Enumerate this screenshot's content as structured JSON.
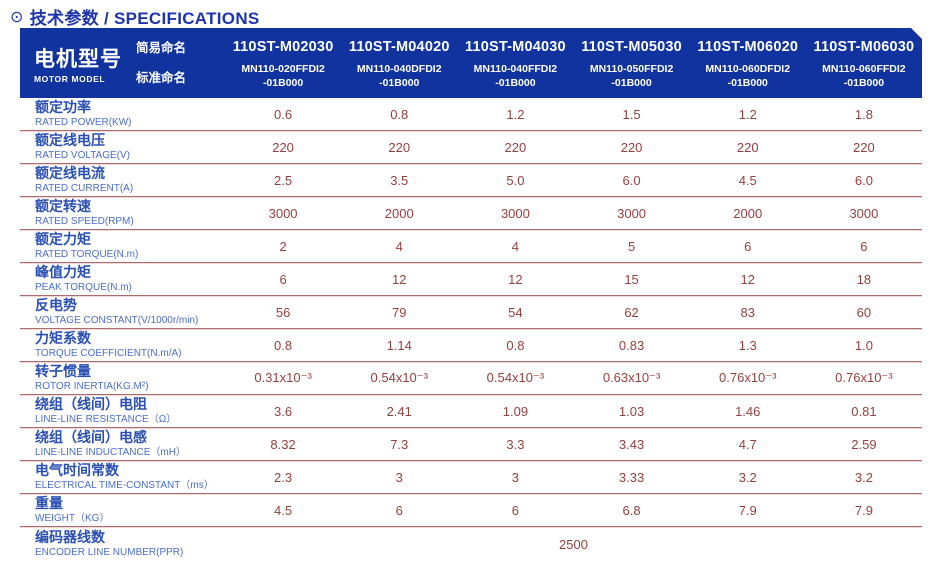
{
  "title": {
    "icon": "⊙",
    "text": "技术参数 / SPECIFICATIONS"
  },
  "header": {
    "motor_model_zh": "电机型号",
    "motor_model_en": "MOTOR MODEL",
    "simple_name_label": "简易命名",
    "standard_name_label": "标准命名",
    "columns": [
      {
        "simple": "110ST-M02030",
        "standard_line1": "MN110-020FFDI2",
        "standard_line2": "-01B000"
      },
      {
        "simple": "110ST-M04020",
        "standard_line1": "MN110-040DFDI2",
        "standard_line2": "-01B000"
      },
      {
        "simple": "110ST-M04030",
        "standard_line1": "MN110-040FFDI2",
        "standard_line2": "-01B000"
      },
      {
        "simple": "110ST-M05030",
        "standard_line1": "MN110-050FFDI2",
        "standard_line2": "-01B000"
      },
      {
        "simple": "110ST-M06020",
        "standard_line1": "MN110-060DFDI2",
        "standard_line2": "-01B000"
      },
      {
        "simple": "110ST-M06030",
        "standard_line1": "MN110-060FFDI2",
        "standard_line2": "-01B000"
      }
    ]
  },
  "rows": [
    {
      "zh": "额定功率",
      "en": "RATED POWER(KW)",
      "values": [
        "0.6",
        "0.8",
        "1.2",
        "1.5",
        "1.2",
        "1.8"
      ]
    },
    {
      "zh": "额定线电压",
      "en": "RATED VOLTAGE(V)",
      "values": [
        "220",
        "220",
        "220",
        "220",
        "220",
        "220"
      ]
    },
    {
      "zh": "额定线电流",
      "en": "RATED CURRENT(A)",
      "values": [
        "2.5",
        "3.5",
        "5.0",
        "6.0",
        "4.5",
        "6.0"
      ]
    },
    {
      "zh": "额定转速",
      "en": "RATED SPEED(RPM)",
      "values": [
        "3000",
        "2000",
        "3000",
        "3000",
        "2000",
        "3000"
      ]
    },
    {
      "zh": "额定力矩",
      "en": "RATED TORQUE(N.m)",
      "values": [
        "2",
        "4",
        "4",
        "5",
        "6",
        "6"
      ]
    },
    {
      "zh": "峰值力矩",
      "en": "PEAK TORQUE(N.m)",
      "values": [
        "6",
        "12",
        "12",
        "15",
        "12",
        "18"
      ]
    },
    {
      "zh": "反电势",
      "en": "VOLTAGE CONSTANT(V/1000r/min)",
      "values": [
        "56",
        "79",
        "54",
        "62",
        "83",
        "60"
      ]
    },
    {
      "zh": "力矩系数",
      "en": "TORQUE COEFFICIENT(N.m/A)",
      "values": [
        "0.8",
        "1.14",
        "0.8",
        "0.83",
        "1.3",
        "1.0"
      ]
    },
    {
      "zh": "转子惯量",
      "en": "ROTOR INERTIA(KG.M²)",
      "values": [
        "0.31x10⁻³",
        "0.54x10⁻³",
        "0.54x10⁻³",
        "0.63x10⁻³",
        "0.76x10⁻³",
        "0.76x10⁻³"
      ]
    },
    {
      "zh": "绕组（线间）电阻",
      "en": "LINE-LINE RESISTANCE（Ω）",
      "values": [
        "3.6",
        "2.41",
        "1.09",
        "1.03",
        "1.46",
        "0.81"
      ]
    },
    {
      "zh": "绕组（线间）电感",
      "en": "LINE-LINE INDUCTANCE（mH）",
      "values": [
        "8.32",
        "7.3",
        "3.3",
        "3.43",
        "4.7",
        "2.59"
      ]
    },
    {
      "zh": "电气时间常数",
      "en": "ELECTRICAL TIME-CONSTANT（ms）",
      "values": [
        "2.3",
        "3",
        "3",
        "3.33",
        "3.2",
        "3.2"
      ]
    },
    {
      "zh": "重量",
      "en": "WEIGHT（KG）",
      "values": [
        "4.5",
        "6",
        "6",
        "6.8",
        "7.9",
        "7.9"
      ]
    }
  ],
  "encoder_row": {
    "zh": "编码器线数",
    "en": "ENCODER LINE NUMBER(PPR)",
    "value": "2500"
  },
  "colors": {
    "header_bg": "#1133a0",
    "title_text": "#1e34ac",
    "label_zh": "#2a50b4",
    "label_en": "#4a6ec9",
    "value_text": "#963f3f",
    "separator": "#aa6c6c"
  }
}
